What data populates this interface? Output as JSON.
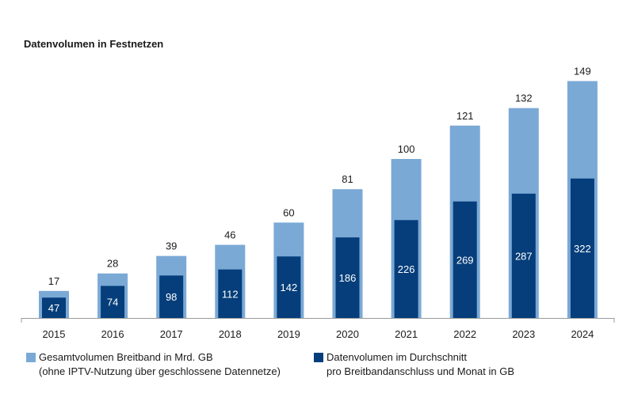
{
  "chart_data": {
    "type": "bar",
    "title": "Datenvolumen in Festnetzen",
    "categories": [
      "2015",
      "2016",
      "2017",
      "2018",
      "2019",
      "2020",
      "2021",
      "2022",
      "2023",
      "2024"
    ],
    "series": [
      {
        "name": "Gesamtvolumen Breitband in Mrd. GB (ohne IPTV-Nutzung über geschlossene Datennetze)",
        "values": [
          17,
          28,
          39,
          46,
          60,
          81,
          100,
          121,
          132,
          149
        ],
        "color": "#7BA9D6"
      },
      {
        "name": "Datenvolumen im Durchschnitt pro Breitbandanschluss und Monat in GB",
        "values": [
          47,
          74,
          98,
          112,
          142,
          186,
          226,
          269,
          287,
          322
        ],
        "color": "#053E7A"
      }
    ],
    "legend": {
      "light_line1": "Gesamtvolumen Breitband in Mrd. GB",
      "light_line2": "(ohne IPTV-Nutzung über geschlossene Datennetze)",
      "dark_line1": "Datenvolumen im Durchschnitt",
      "dark_line2": "pro Breitbandanschluss und Monat in GB",
      "placement": "bottom"
    },
    "grid": false
  }
}
